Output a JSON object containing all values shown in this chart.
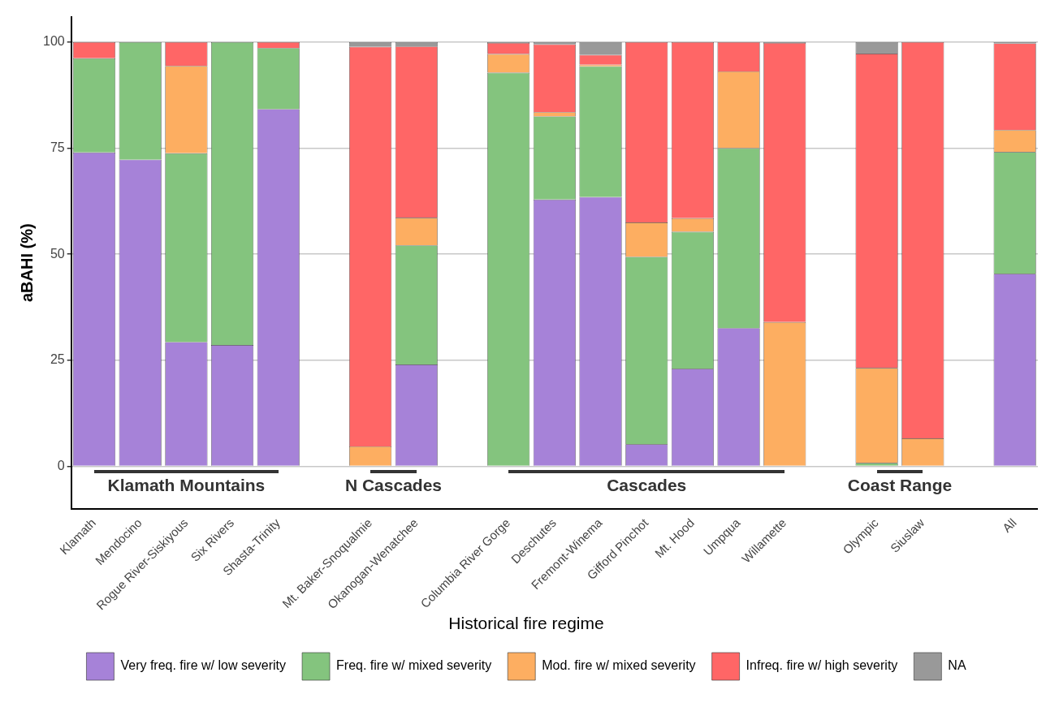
{
  "chart_data": {
    "type": "bar",
    "stacked": true,
    "ylabel": "aBAHI (%)",
    "legend_title": "Historical fire regime",
    "legend": "bottom",
    "grid": "y",
    "categories": [
      "Klamath",
      "Mendocino",
      "Rogue River-Siskiyous",
      "Six Rivers",
      "Shasta-Trinity",
      null,
      "Mt. Baker-Snoqualmie",
      "Okanogan-Wenatchee",
      null,
      "Columbia River Gorge",
      "Deschutes",
      "Fremont-Winema",
      "Gifford Pinchot",
      "Mt. Hood",
      "Umpqua",
      "Willamette",
      null,
      "Olympic",
      "Siuslaw",
      null,
      "All"
    ],
    "ylim": [
      -10,
      106
    ],
    "yticks": [
      0,
      25,
      50,
      75,
      100
    ],
    "annotations": [
      "Klamath Mountains",
      "N Cascades",
      "Cascades",
      "Coast Range"
    ],
    "series": [
      {
        "name": "Very freq. fire w/ low severity",
        "color": "#a682d8",
        "values": [
          74,
          72.3,
          29.3,
          28.6,
          84.2,
          null,
          0,
          24,
          null,
          0,
          62.9,
          63.5,
          5.2,
          23,
          32.6,
          0,
          null,
          0,
          0,
          null,
          45.4
        ]
      },
      {
        "name": "Freq. fire w/ mixed severity",
        "color": "#84c47e",
        "values": [
          22.2,
          27.7,
          44.5,
          71.4,
          14.4,
          null,
          0,
          28.1,
          null,
          92.8,
          19.6,
          30.8,
          44.2,
          32.3,
          42.4,
          0,
          null,
          0.8,
          0,
          null,
          28.7
        ]
      },
      {
        "name": "Mod. fire w/ mixed severity",
        "color": "#fdae61",
        "values": [
          0,
          0,
          20.6,
          0,
          0,
          null,
          4.7,
          6.5,
          null,
          4.4,
          1,
          0.4,
          8.1,
          3.2,
          18.1,
          34,
          null,
          22.4,
          6.6,
          null,
          5.2
        ]
      },
      {
        "name": "Infreq. fire w/ high severity",
        "color": "#ff6666",
        "values": [
          3.8,
          0,
          5.6,
          0,
          1.4,
          null,
          94.2,
          40.4,
          null,
          2.6,
          16,
          2.3,
          42.5,
          41.5,
          6.9,
          65.8,
          null,
          74.1,
          93.4,
          null,
          20.4
        ]
      },
      {
        "name": "NA",
        "color": "#999999",
        "values": [
          0,
          0,
          0,
          0,
          0,
          null,
          1.1,
          1,
          null,
          0.2,
          0.5,
          3,
          0,
          0,
          0,
          0.2,
          null,
          2.7,
          0,
          null,
          0.3
        ]
      }
    ]
  }
}
